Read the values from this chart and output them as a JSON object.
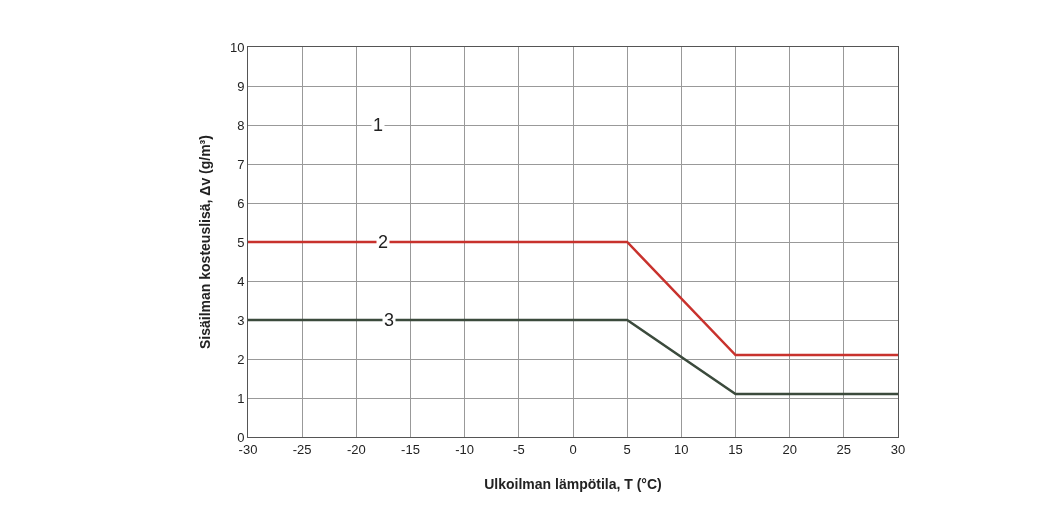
{
  "chart_data": {
    "type": "line",
    "xlabel": "Ulkoilman lämpötila, T (°C)",
    "ylabel": "Sisäilman kosteuslisä, Δv (g/m³)",
    "x": [
      -30,
      5,
      15,
      30
    ],
    "series": [
      {
        "color": "#c8322d",
        "values": [
          5,
          5,
          2.1,
          2.1
        ]
      },
      {
        "color": "#3b4a3c",
        "values": [
          3,
          3,
          1.1,
          1.1
        ]
      }
    ],
    "xlim": [
      -30,
      30
    ],
    "xticks": [
      -30,
      -25,
      -20,
      -15,
      -10,
      -5,
      0,
      5,
      10,
      15,
      20,
      25,
      30
    ],
    "ylim": [
      0,
      10
    ],
    "yticks": [
      0,
      1,
      2,
      3,
      4,
      5,
      6,
      7,
      8,
      9,
      10
    ],
    "grid": true,
    "marker": "none",
    "line_style": "solid",
    "annotations": [
      {
        "text": "1",
        "x": -18,
        "y": 8
      },
      {
        "text": "2",
        "x": -17.5,
        "y": 5
      },
      {
        "text": "3",
        "x": -17,
        "y": 3
      }
    ]
  }
}
